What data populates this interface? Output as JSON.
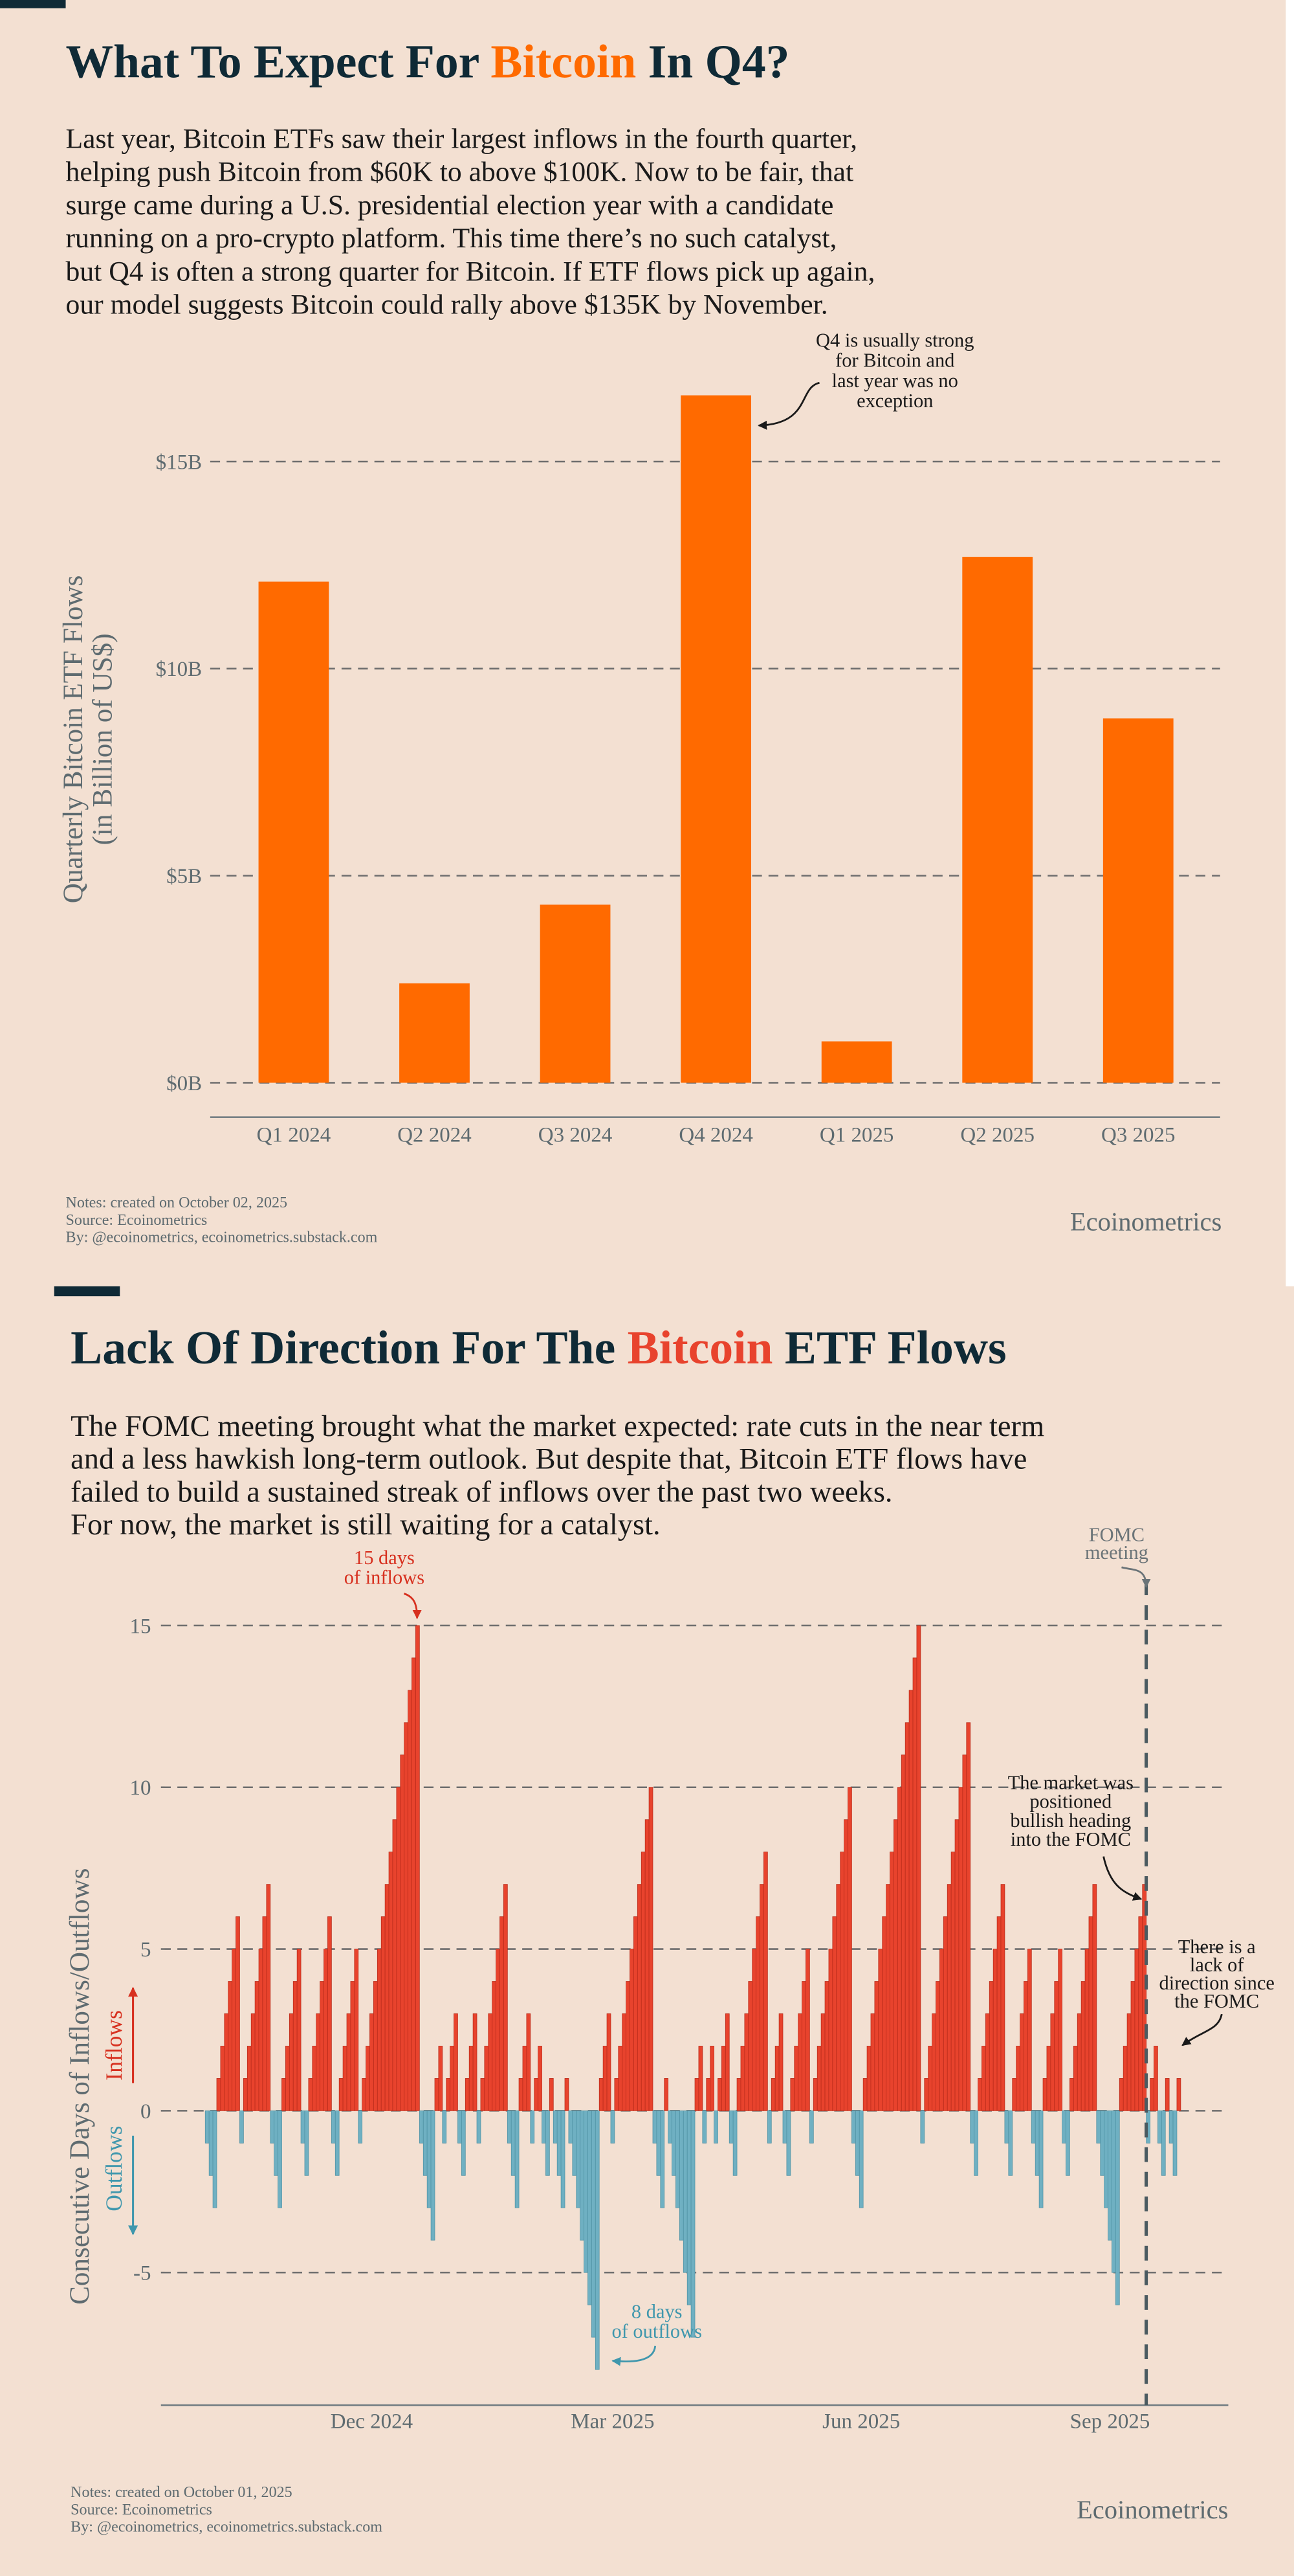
{
  "chart_data": [
    {
      "type": "bar",
      "title_parts": [
        "What To Expect For ",
        "Bitcoin",
        " In Q4?"
      ],
      "paragraph": [
        "Last year, Bitcoin ETFs saw their largest inflows in the fourth quarter,",
        "helping push Bitcoin from $60K to above $100K. Now to be fair, that",
        "surge came during a U.S. presidential election year with a candidate",
        "running on a pro-crypto platform. This time there’s no such catalyst,",
        "but Q4 is often a strong quarter for Bitcoin. If ETF flows pick up again,",
        "our model suggests Bitcoin could rally above $135K by November."
      ],
      "y_label": [
        "Quarterly Bitcoin ETF Flows",
        "(in Billion of US$)"
      ],
      "categories": [
        "Q1 2024",
        "Q2 2024",
        "Q3 2024",
        "Q4 2024",
        "Q1 2025",
        "Q2 2025",
        "Q3 2025"
      ],
      "values": [
        12.1,
        2.4,
        4.3,
        16.6,
        1.0,
        12.7,
        8.8
      ],
      "color": "#ff6a00",
      "ylim": [
        -0.83,
        17.22
      ],
      "yticks": [
        {
          "value": 0,
          "label": "$0B"
        },
        {
          "value": 5,
          "label": "$5B"
        },
        {
          "value": 10,
          "label": "$10B"
        },
        {
          "value": 15,
          "label": "$15B"
        }
      ],
      "grid": true,
      "annotations": [
        {
          "lines": [
            "Q4 is usually strong",
            "for Bitcoin and",
            "last year was no",
            "exception"
          ],
          "color": "#1a1a1a"
        }
      ],
      "notes": [
        "Notes: created on October 02, 2025",
        "Source: Ecoinometrics",
        "By: @ecoinometrics, ecoinometrics.substack.com"
      ],
      "brand": "Ecoinometrics"
    },
    {
      "type": "bar",
      "title_parts": [
        "Lack Of Direction For The ",
        "Bitcoin",
        " ETF Flows"
      ],
      "paragraph": [
        "The FOMC meeting brought what the market expected: rate cuts in the near term",
        "and a less hawkish long-term outlook. But despite that, Bitcoin ETF flows have",
        "failed to build a sustained streak of inflows over the past two weeks.",
        "For now, the market is still waiting for a catalyst."
      ],
      "y_label": [
        "Consecutive Days of Inflows/Outflows"
      ],
      "inflow_label": "Inflows",
      "outflow_label": "Outflows",
      "categories": [
        null,
        null,
        null,
        null,
        null,
        null,
        null,
        null,
        null,
        null,
        null,
        null,
        null,
        null,
        null,
        null,
        null,
        null,
        null,
        null,
        null,
        null,
        null,
        null,
        null,
        null,
        null,
        null,
        null,
        null,
        null,
        null,
        null,
        null,
        null,
        null,
        null,
        null,
        null,
        null,
        null,
        null,
        null,
        "Dec 2024",
        null,
        null,
        null,
        null,
        null,
        null,
        null,
        null,
        null,
        null,
        null,
        null,
        null,
        null,
        null,
        null,
        null,
        null,
        null,
        null,
        null,
        null,
        null,
        null,
        null,
        null,
        null,
        null,
        null,
        null,
        null,
        null,
        null,
        null,
        null,
        null,
        null,
        null,
        null,
        null,
        null,
        null,
        null,
        null,
        null,
        null,
        null,
        null,
        null,
        null,
        null,
        null,
        null,
        null,
        null,
        null,
        null,
        null,
        null,
        null,
        null,
        null,
        "Mar 2025",
        null,
        null,
        null,
        null,
        null,
        null,
        null,
        null,
        null,
        null,
        null,
        null,
        null,
        null,
        null,
        null,
        null,
        null,
        null,
        null,
        null,
        null,
        null,
        null,
        null,
        null,
        null,
        null,
        null,
        null,
        null,
        null,
        null,
        null,
        null,
        null,
        null,
        null,
        null,
        null,
        null,
        null,
        null,
        null,
        null,
        null,
        null,
        null,
        null,
        null,
        null,
        null,
        null,
        null,
        null,
        null,
        null,
        null,
        null,
        null,
        null,
        null,
        null,
        null,
        "Jun 2025",
        null,
        null,
        null,
        null,
        null,
        null,
        null,
        null,
        null,
        null,
        null,
        null,
        null,
        null,
        null,
        null,
        null,
        null,
        null,
        null,
        null,
        null,
        null,
        null,
        null,
        null,
        null,
        null,
        null,
        null,
        null,
        null,
        null,
        null,
        null,
        null,
        null,
        null,
        null,
        null,
        null,
        null,
        null,
        null,
        null,
        null,
        null,
        null,
        null,
        null,
        null,
        null,
        null,
        null,
        null,
        null,
        null,
        null,
        null,
        null,
        null,
        null,
        null,
        null,
        "Sep 2025",
        null,
        null,
        null,
        null,
        null,
        null,
        null,
        null,
        null,
        null,
        null,
        null,
        null,
        null,
        null,
        null,
        null,
        null
      ],
      "values": [
        -1,
        -2,
        -3,
        1,
        2,
        3,
        4,
        5,
        6,
        -1,
        1,
        2,
        3,
        4,
        5,
        6,
        7,
        -1,
        -2,
        -3,
        1,
        2,
        3,
        4,
        5,
        -1,
        -2,
        1,
        2,
        3,
        4,
        5,
        6,
        -1,
        -2,
        1,
        2,
        3,
        4,
        5,
        -1,
        1,
        2,
        3,
        4,
        5,
        6,
        7,
        8,
        9,
        10,
        11,
        12,
        13,
        14,
        15,
        -1,
        -2,
        -3,
        -4,
        1,
        2,
        -1,
        1,
        2,
        3,
        -1,
        -2,
        1,
        2,
        3,
        -1,
        1,
        2,
        3,
        4,
        5,
        6,
        7,
        -1,
        -2,
        -3,
        1,
        2,
        3,
        -1,
        1,
        2,
        -1,
        -2,
        1,
        -1,
        -2,
        -3,
        1,
        -1,
        -2,
        -3,
        -4,
        -5,
        -6,
        -7,
        -8,
        1,
        2,
        3,
        -1,
        1,
        2,
        3,
        4,
        5,
        6,
        7,
        8,
        9,
        10,
        -1,
        -2,
        -3,
        1,
        -1,
        -2,
        -3,
        -4,
        -5,
        -6,
        -7,
        1,
        2,
        -1,
        1,
        2,
        -1,
        1,
        2,
        3,
        -1,
        -2,
        1,
        2,
        3,
        4,
        5,
        6,
        7,
        8,
        -1,
        1,
        2,
        3,
        -1,
        -2,
        1,
        2,
        3,
        4,
        5,
        -1,
        1,
        2,
        3,
        4,
        5,
        6,
        7,
        8,
        9,
        10,
        -1,
        -2,
        -3,
        1,
        2,
        3,
        4,
        5,
        6,
        7,
        8,
        9,
        10,
        11,
        12,
        13,
        14,
        15,
        -1,
        1,
        2,
        3,
        4,
        5,
        6,
        7,
        8,
        9,
        10,
        11,
        12,
        -1,
        -2,
        1,
        2,
        3,
        4,
        5,
        6,
        7,
        -1,
        -2,
        1,
        2,
        3,
        4,
        5,
        -1,
        -2,
        -3,
        1,
        2,
        3,
        4,
        5,
        -1,
        -2,
        1,
        2,
        3,
        4,
        5,
        6,
        7,
        -1,
        -2,
        -3,
        -4,
        -5,
        -6,
        1,
        2,
        3,
        4,
        5,
        6,
        7,
        -1,
        1,
        2,
        -1,
        -2,
        1,
        -1,
        -2,
        1
      ],
      "color": "#e8432d",
      "negative_color": "#6fb0c2",
      "ylim": [
        -9.1,
        16.75
      ],
      "yticks": [
        -5,
        0,
        5,
        10,
        15
      ],
      "grid": true,
      "annotations": [
        {
          "lines": [
            "15 days",
            "of inflows"
          ],
          "color": "#d7301f"
        },
        {
          "lines": [
            "8 days",
            "of outflows"
          ],
          "color": "#3f97ad"
        },
        {
          "lines": [
            "FOMC",
            "meeting"
          ],
          "color": "#6b7478"
        },
        {
          "lines": [
            "The market was",
            "positioned",
            "bullish heading",
            "into the FOMC"
          ],
          "color": "#1a1a1a"
        },
        {
          "lines": [
            "There is a",
            "lack of",
            "direction since",
            "the FOMC"
          ],
          "color": "#1a1a1a"
        }
      ],
      "notes": [
        "Notes: created on October 01, 2025",
        "Source: Ecoinometrics",
        "By: @ecoinometrics, ecoinometrics.substack.com"
      ],
      "brand": "Ecoinometrics"
    }
  ]
}
